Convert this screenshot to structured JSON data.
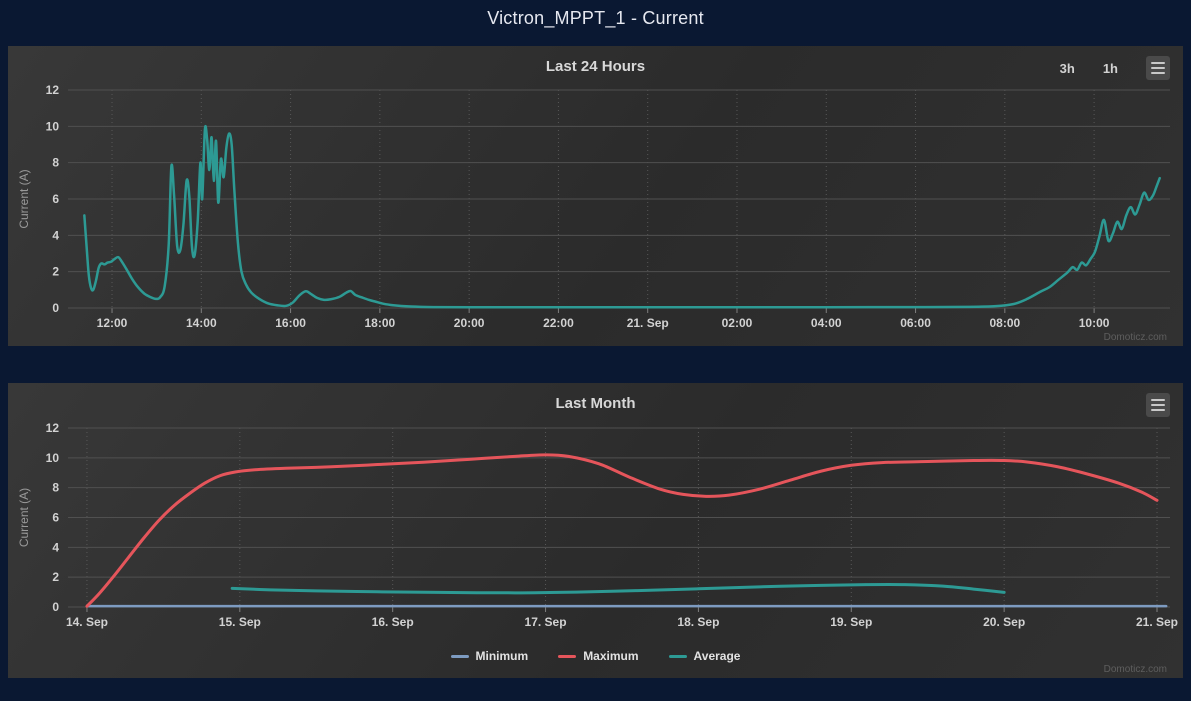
{
  "window": {
    "title": "Victron_MPPT_1 - Current"
  },
  "credits": "Domoticz.com",
  "colors": {
    "page_bg": "#0a1832",
    "panel_bg": "#2e2e2e",
    "grid_solid": "#505050",
    "grid_dotted": "#585858",
    "tick_mark": "#7f7f7f",
    "axis_label": "#d2d2d2",
    "axis_title": "#9a9a9a",
    "chart_title": "#d8d8d8",
    "legend_text": "#e2e2e2",
    "credits_text": "#5e5e5e",
    "series_current": "#2d9a94",
    "series_minimum": "#7d9bc1",
    "series_maximum": "#e5555b",
    "series_average": "#2d9a94"
  },
  "chart_data": [
    {
      "type": "line",
      "title": "Last 24 Hours",
      "xlabel": "",
      "ylabel": "Current (A)",
      "x_unit": "hours on 24h clock, +24 = next day (21. Sep)",
      "xlim": [
        11.014,
        35.7
      ],
      "ylim": [
        0,
        12
      ],
      "grid": true,
      "legend": false,
      "range_buttons": [
        "3h",
        "1h"
      ],
      "yticks": [
        0,
        2,
        4,
        6,
        8,
        10,
        12
      ],
      "xticks": [
        {
          "v": 12,
          "label": "12:00"
        },
        {
          "v": 14,
          "label": "14:00"
        },
        {
          "v": 16,
          "label": "16:00"
        },
        {
          "v": 18,
          "label": "18:00"
        },
        {
          "v": 20,
          "label": "20:00"
        },
        {
          "v": 22,
          "label": "22:00"
        },
        {
          "v": 24,
          "label": "21. Sep"
        },
        {
          "v": 26,
          "label": "02:00"
        },
        {
          "v": 28,
          "label": "04:00"
        },
        {
          "v": 30,
          "label": "06:00"
        },
        {
          "v": 32,
          "label": "08:00"
        },
        {
          "v": 34,
          "label": "10:00"
        }
      ],
      "series": [
        {
          "name": "Current",
          "color": "#2d9a94",
          "width": 2.5,
          "points": [
            [
              11.38,
              5.1
            ],
            [
              11.43,
              3.4
            ],
            [
              11.48,
              1.8
            ],
            [
              11.53,
              1.1
            ],
            [
              11.58,
              1.0
            ],
            [
              11.64,
              1.5
            ],
            [
              11.7,
              2.2
            ],
            [
              11.76,
              2.45
            ],
            [
              11.83,
              2.4
            ],
            [
              11.9,
              2.5
            ],
            [
              11.98,
              2.55
            ],
            [
              12.06,
              2.7
            ],
            [
              12.14,
              2.8
            ],
            [
              12.22,
              2.55
            ],
            [
              12.32,
              2.15
            ],
            [
              12.45,
              1.6
            ],
            [
              12.58,
              1.15
            ],
            [
              12.72,
              0.8
            ],
            [
              12.86,
              0.6
            ],
            [
              12.98,
              0.5
            ],
            [
              13.08,
              0.6
            ],
            [
              13.18,
              1.2
            ],
            [
              13.27,
              3.5
            ],
            [
              13.33,
              7.8
            ],
            [
              13.39,
              6.2
            ],
            [
              13.46,
              3.4
            ],
            [
              13.53,
              3.2
            ],
            [
              13.6,
              4.6
            ],
            [
              13.67,
              7.0
            ],
            [
              13.73,
              6.2
            ],
            [
              13.79,
              3.4
            ],
            [
              13.85,
              2.9
            ],
            [
              13.92,
              4.8
            ],
            [
              13.98,
              8.0
            ],
            [
              14.02,
              6.0
            ],
            [
              14.08,
              9.8
            ],
            [
              14.13,
              9.3
            ],
            [
              14.18,
              7.6
            ],
            [
              14.23,
              9.4
            ],
            [
              14.28,
              7.0
            ],
            [
              14.33,
              9.2
            ],
            [
              14.38,
              5.8
            ],
            [
              14.44,
              8.2
            ],
            [
              14.5,
              7.2
            ],
            [
              14.56,
              8.8
            ],
            [
              14.62,
              9.6
            ],
            [
              14.68,
              9.0
            ],
            [
              14.74,
              6.5
            ],
            [
              14.82,
              3.6
            ],
            [
              14.9,
              2.0
            ],
            [
              15.0,
              1.3
            ],
            [
              15.12,
              0.85
            ],
            [
              15.3,
              0.5
            ],
            [
              15.5,
              0.25
            ],
            [
              15.7,
              0.15
            ],
            [
              15.9,
              0.12
            ],
            [
              16.05,
              0.3
            ],
            [
              16.2,
              0.7
            ],
            [
              16.34,
              0.92
            ],
            [
              16.45,
              0.78
            ],
            [
              16.6,
              0.55
            ],
            [
              16.75,
              0.45
            ],
            [
              16.9,
              0.48
            ],
            [
              17.1,
              0.62
            ],
            [
              17.25,
              0.85
            ],
            [
              17.35,
              0.93
            ],
            [
              17.45,
              0.72
            ],
            [
              17.6,
              0.58
            ],
            [
              17.75,
              0.45
            ],
            [
              17.9,
              0.35
            ],
            [
              18.05,
              0.25
            ],
            [
              18.3,
              0.15
            ],
            [
              18.7,
              0.08
            ],
            [
              19.2,
              0.05
            ],
            [
              20.0,
              0.04
            ],
            [
              21.5,
              0.04
            ],
            [
              23.0,
              0.04
            ],
            [
              24.5,
              0.04
            ],
            [
              26.0,
              0.04
            ],
            [
              27.5,
              0.04
            ],
            [
              29.0,
              0.05
            ],
            [
              30.2,
              0.05
            ],
            [
              31.2,
              0.06
            ],
            [
              31.8,
              0.1
            ],
            [
              32.2,
              0.22
            ],
            [
              32.5,
              0.5
            ],
            [
              32.8,
              0.9
            ],
            [
              33.0,
              1.15
            ],
            [
              33.2,
              1.55
            ],
            [
              33.4,
              1.95
            ],
            [
              33.52,
              2.25
            ],
            [
              33.62,
              2.1
            ],
            [
              33.72,
              2.5
            ],
            [
              33.82,
              2.35
            ],
            [
              33.92,
              2.7
            ],
            [
              34.02,
              3.1
            ],
            [
              34.12,
              3.95
            ],
            [
              34.22,
              4.85
            ],
            [
              34.32,
              3.7
            ],
            [
              34.42,
              4.1
            ],
            [
              34.52,
              4.75
            ],
            [
              34.62,
              4.35
            ],
            [
              34.72,
              5.1
            ],
            [
              34.82,
              5.55
            ],
            [
              34.92,
              5.15
            ],
            [
              35.02,
              5.7
            ],
            [
              35.12,
              6.35
            ],
            [
              35.22,
              5.95
            ],
            [
              35.32,
              6.2
            ],
            [
              35.4,
              6.7
            ],
            [
              35.47,
              7.15
            ]
          ]
        }
      ]
    },
    {
      "type": "line",
      "title": "Last Month",
      "xlabel": "",
      "ylabel": "Current (A)",
      "x_unit": "day of September",
      "xlim": [
        13.876,
        21.085
      ],
      "ylim": [
        0,
        12
      ],
      "grid": true,
      "legend": true,
      "legend_position": "bottom-center",
      "yticks": [
        0,
        2,
        4,
        6,
        8,
        10,
        12
      ],
      "xticks": [
        {
          "v": 14,
          "label": "14. Sep"
        },
        {
          "v": 15,
          "label": "15. Sep"
        },
        {
          "v": 16,
          "label": "16. Sep"
        },
        {
          "v": 17,
          "label": "17. Sep"
        },
        {
          "v": 18,
          "label": "18. Sep"
        },
        {
          "v": 19,
          "label": "19. Sep"
        },
        {
          "v": 20,
          "label": "20. Sep"
        },
        {
          "v": 21,
          "label": "21. Sep"
        }
      ],
      "series": [
        {
          "name": "Minimum",
          "color": "#7d9bc1",
          "width": 2.5,
          "points": [
            [
              14.0,
              0.06
            ],
            [
              21.06,
              0.06
            ]
          ]
        },
        {
          "name": "Maximum",
          "color": "#e5555b",
          "width": 3,
          "points": [
            [
              14.0,
              0.05
            ],
            [
              14.08,
              0.9
            ],
            [
              14.17,
              2.0
            ],
            [
              14.27,
              3.3
            ],
            [
              14.37,
              4.6
            ],
            [
              14.47,
              5.8
            ],
            [
              14.57,
              6.8
            ],
            [
              14.67,
              7.6
            ],
            [
              14.77,
              8.3
            ],
            [
              14.87,
              8.8
            ],
            [
              14.97,
              9.05
            ],
            [
              15.1,
              9.2
            ],
            [
              15.3,
              9.3
            ],
            [
              15.6,
              9.4
            ],
            [
              15.9,
              9.55
            ],
            [
              16.2,
              9.7
            ],
            [
              16.5,
              9.9
            ],
            [
              16.8,
              10.1
            ],
            [
              17.0,
              10.2
            ],
            [
              17.15,
              10.1
            ],
            [
              17.35,
              9.6
            ],
            [
              17.55,
              8.7
            ],
            [
              17.75,
              7.9
            ],
            [
              17.9,
              7.55
            ],
            [
              18.05,
              7.42
            ],
            [
              18.2,
              7.5
            ],
            [
              18.4,
              7.9
            ],
            [
              18.6,
              8.5
            ],
            [
              18.8,
              9.1
            ],
            [
              19.0,
              9.5
            ],
            [
              19.2,
              9.68
            ],
            [
              19.5,
              9.75
            ],
            [
              19.8,
              9.82
            ],
            [
              20.0,
              9.82
            ],
            [
              20.15,
              9.72
            ],
            [
              20.35,
              9.4
            ],
            [
              20.55,
              8.9
            ],
            [
              20.75,
              8.3
            ],
            [
              20.9,
              7.7
            ],
            [
              21.0,
              7.15
            ]
          ]
        },
        {
          "name": "Average",
          "color": "#2d9a94",
          "width": 3,
          "points": [
            [
              14.95,
              1.25
            ],
            [
              15.2,
              1.15
            ],
            [
              15.5,
              1.08
            ],
            [
              15.9,
              1.02
            ],
            [
              16.3,
              0.98
            ],
            [
              16.8,
              0.95
            ],
            [
              17.2,
              1.0
            ],
            [
              17.6,
              1.1
            ],
            [
              18.0,
              1.22
            ],
            [
              18.4,
              1.35
            ],
            [
              18.8,
              1.45
            ],
            [
              19.1,
              1.5
            ],
            [
              19.35,
              1.5
            ],
            [
              19.6,
              1.4
            ],
            [
              19.8,
              1.2
            ],
            [
              20.0,
              0.98
            ]
          ]
        }
      ]
    }
  ]
}
